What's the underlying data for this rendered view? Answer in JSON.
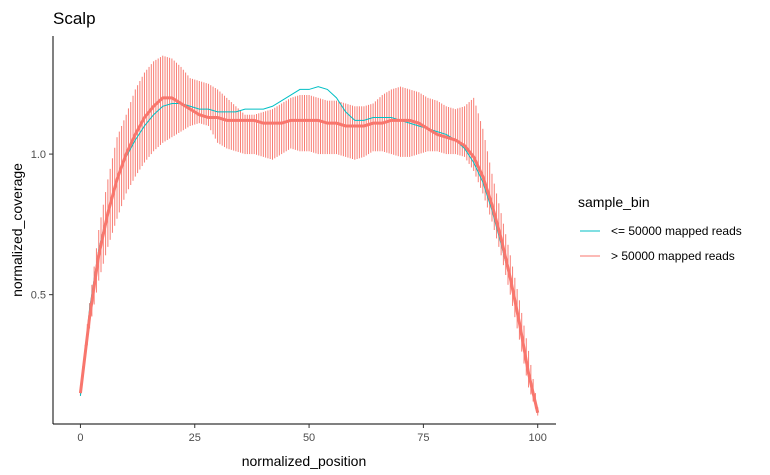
{
  "chart_data": {
    "type": "line",
    "title": "Scalp",
    "xlabel": "normalized_position",
    "ylabel": "normalized_coverage",
    "xlim": [
      -6,
      104
    ],
    "ylim": [
      0.04,
      1.42
    ],
    "x_ticks": [
      0,
      25,
      50,
      75,
      100
    ],
    "y_ticks": [
      0.5,
      1.0
    ],
    "y_tick_labels": [
      "0.5",
      "1.0"
    ],
    "grid": false,
    "legend": {
      "title": "sample_bin",
      "placement": "right"
    },
    "series": [
      {
        "name": "<= 50000 mapped reads",
        "color": "#00BFC4",
        "x": [
          0,
          2,
          4,
          6,
          8,
          10,
          12,
          14,
          16,
          18,
          20,
          22,
          24,
          26,
          28,
          30,
          32,
          34,
          36,
          38,
          40,
          42,
          44,
          46,
          48,
          50,
          52,
          54,
          56,
          58,
          60,
          62,
          64,
          66,
          68,
          70,
          72,
          74,
          76,
          78,
          80,
          82,
          84,
          86,
          88,
          90,
          92,
          94,
          96,
          98,
          100
        ],
        "values": [
          0.14,
          0.45,
          0.66,
          0.8,
          0.91,
          0.99,
          1.05,
          1.1,
          1.14,
          1.17,
          1.18,
          1.18,
          1.17,
          1.16,
          1.16,
          1.15,
          1.15,
          1.15,
          1.16,
          1.16,
          1.16,
          1.17,
          1.19,
          1.21,
          1.23,
          1.23,
          1.24,
          1.23,
          1.2,
          1.15,
          1.12,
          1.12,
          1.13,
          1.13,
          1.13,
          1.12,
          1.11,
          1.1,
          1.09,
          1.08,
          1.07,
          1.05,
          1.02,
          0.97,
          0.9,
          0.8,
          0.68,
          0.55,
          0.4,
          0.22,
          0.08
        ]
      },
      {
        "name": "> 50000 mapped reads",
        "color": "#F8766D",
        "x": [
          0,
          2,
          4,
          6,
          8,
          10,
          12,
          14,
          16,
          18,
          20,
          22,
          24,
          26,
          28,
          30,
          32,
          34,
          36,
          38,
          40,
          42,
          44,
          46,
          48,
          50,
          52,
          54,
          56,
          58,
          60,
          62,
          64,
          66,
          68,
          70,
          72,
          74,
          76,
          78,
          80,
          82,
          84,
          86,
          88,
          90,
          92,
          94,
          96,
          98,
          100
        ],
        "values": [
          0.15,
          0.42,
          0.64,
          0.79,
          0.91,
          1.0,
          1.07,
          1.13,
          1.17,
          1.2,
          1.2,
          1.18,
          1.16,
          1.14,
          1.13,
          1.13,
          1.12,
          1.12,
          1.12,
          1.12,
          1.11,
          1.11,
          1.11,
          1.12,
          1.12,
          1.12,
          1.12,
          1.11,
          1.11,
          1.1,
          1.1,
          1.1,
          1.11,
          1.11,
          1.12,
          1.12,
          1.12,
          1.11,
          1.09,
          1.07,
          1.06,
          1.05,
          1.03,
          0.99,
          0.92,
          0.82,
          0.7,
          0.56,
          0.4,
          0.22,
          0.08
        ],
        "lower": [
          0.14,
          0.38,
          0.55,
          0.67,
          0.77,
          0.86,
          0.92,
          0.97,
          1.01,
          1.04,
          1.06,
          1.08,
          1.1,
          1.11,
          1.1,
          1.04,
          1.02,
          1.01,
          1.0,
          1.0,
          0.99,
          0.98,
          1.0,
          1.02,
          1.01,
          1.01,
          1.0,
          1.0,
          1.0,
          0.99,
          0.98,
          0.99,
          1.01,
          1.01,
          1.0,
          0.99,
          0.99,
          1.0,
          1.01,
          1.01,
          1.0,
          1.0,
          0.99,
          0.94,
          0.86,
          0.76,
          0.64,
          0.5,
          0.34,
          0.17,
          0.07
        ],
        "upper": [
          0.17,
          0.47,
          0.73,
          0.91,
          1.06,
          1.14,
          1.23,
          1.29,
          1.33,
          1.35,
          1.34,
          1.31,
          1.27,
          1.26,
          1.25,
          1.23,
          1.2,
          1.17,
          1.14,
          1.14,
          1.15,
          1.16,
          1.18,
          1.2,
          1.21,
          1.21,
          1.2,
          1.19,
          1.19,
          1.18,
          1.17,
          1.17,
          1.18,
          1.21,
          1.23,
          1.24,
          1.23,
          1.22,
          1.2,
          1.19,
          1.17,
          1.16,
          1.17,
          1.2,
          1.09,
          0.93,
          0.79,
          0.64,
          0.48,
          0.3,
          0.1
        ]
      }
    ]
  }
}
